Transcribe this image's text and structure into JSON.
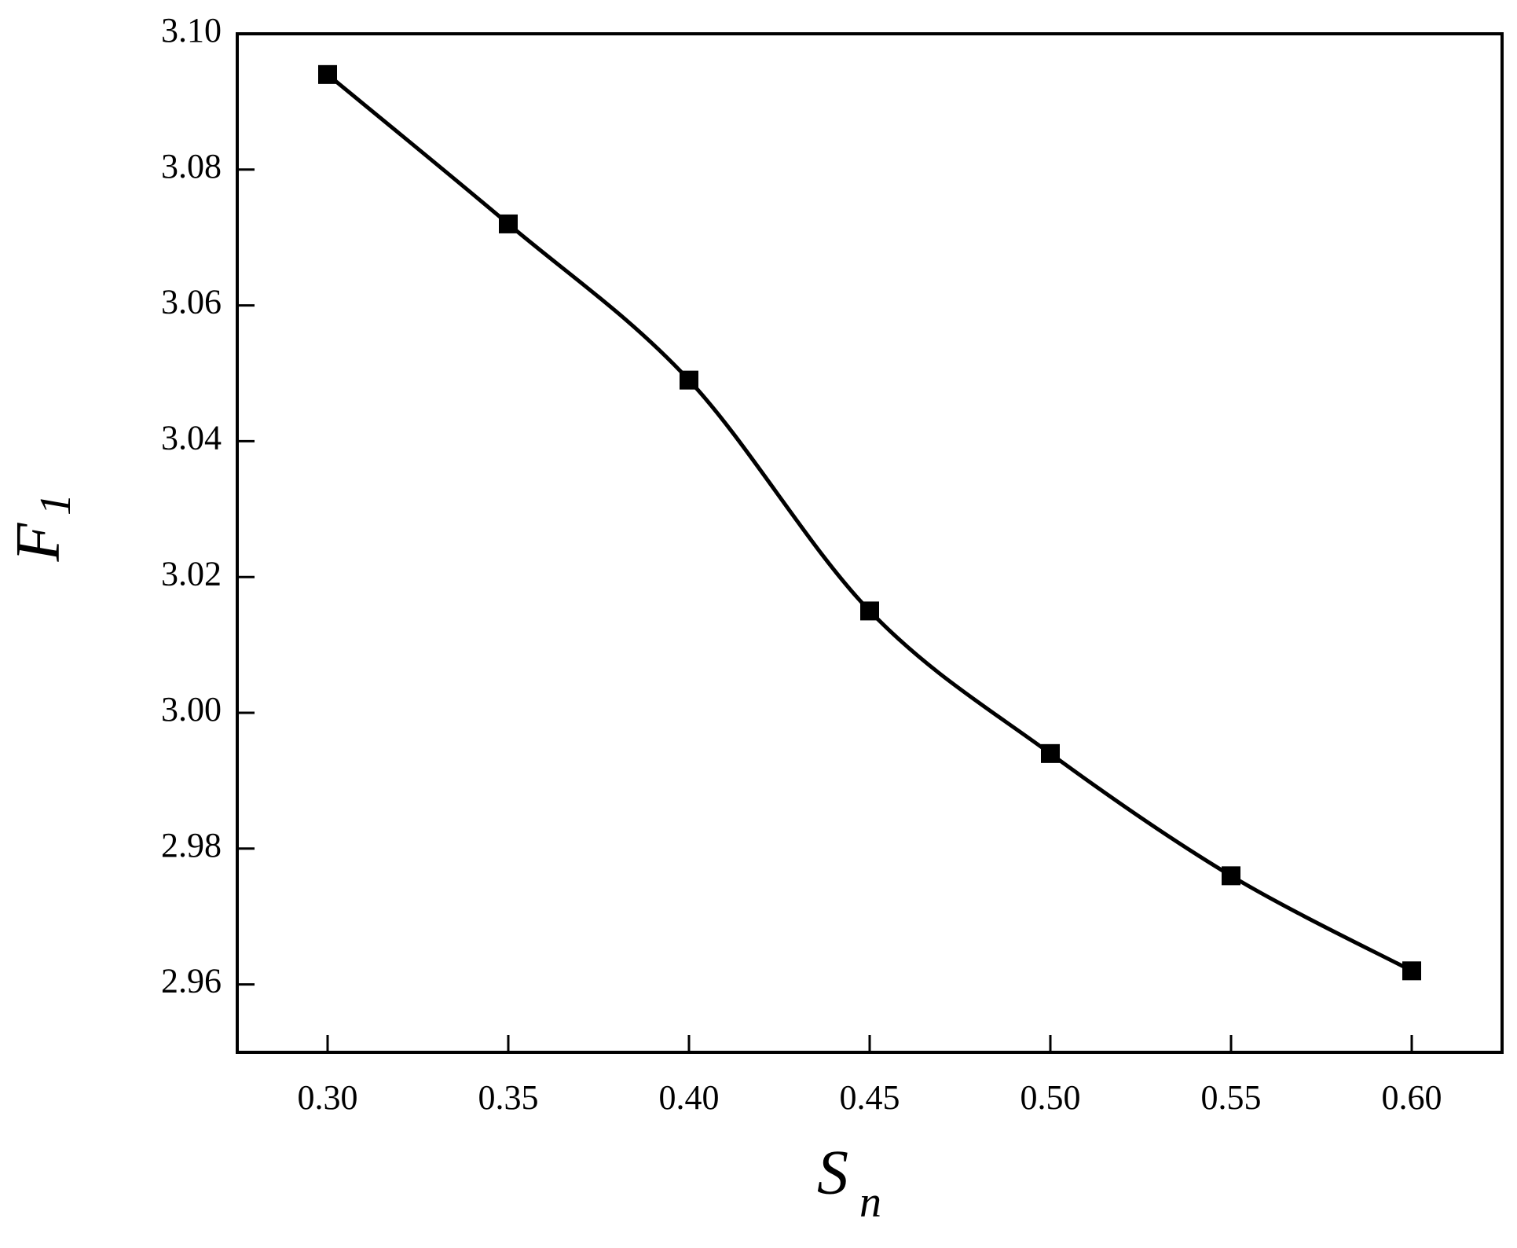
{
  "chart_data": {
    "type": "line",
    "xlabel": {
      "main": "S",
      "sub": "n"
    },
    "ylabel": {
      "main": "F",
      "sub": "1"
    },
    "x": [
      0.3,
      0.35,
      0.4,
      0.45,
      0.5,
      0.55,
      0.6
    ],
    "series": [
      {
        "color": "#000000",
        "values": [
          3.094,
          3.072,
          3.049,
          3.015,
          2.994,
          2.976,
          2.962
        ]
      }
    ],
    "xlim": [
      0.275,
      0.625
    ],
    "xticks": [
      {
        "value": 0.3,
        "label": "0.30"
      },
      0.35,
      {
        "value": 0.4,
        "label": "0.40"
      },
      0.45,
      {
        "value": 0.5,
        "label": "0.50"
      },
      0.55,
      {
        "value": 0.6,
        "label": "0.60"
      }
    ],
    "ylim": [
      2.95,
      3.1
    ],
    "yticks": [
      2.96,
      2.98,
      {
        "value": 3,
        "label": "3.00"
      },
      3.02,
      3.04,
      3.06,
      3.08,
      {
        "value": 3.1,
        "label": "3.10"
      }
    ],
    "grid": false
  }
}
